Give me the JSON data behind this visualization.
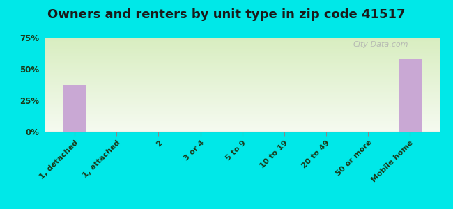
{
  "title": "Owners and renters by unit type in zip code 41517",
  "categories": [
    "1, detached",
    "1, attached",
    "2",
    "3 or 4",
    "5 to 9",
    "10 to 19",
    "20 to 49",
    "50 or more",
    "Mobile home"
  ],
  "values": [
    37.0,
    0.0,
    0.0,
    0.0,
    0.0,
    0.0,
    0.0,
    0.0,
    58.0
  ],
  "bar_color": "#c9a8d4",
  "background_outer": "#00e8e8",
  "plot_bg_top": "#e0edcc",
  "plot_bg_bottom": "#f8fbf3",
  "yticks": [
    0,
    25,
    50,
    75
  ],
  "ylim": [
    0,
    75
  ],
  "title_fontsize": 13,
  "tick_label_color": "#1a3a1a",
  "watermark": "City-Data.com"
}
